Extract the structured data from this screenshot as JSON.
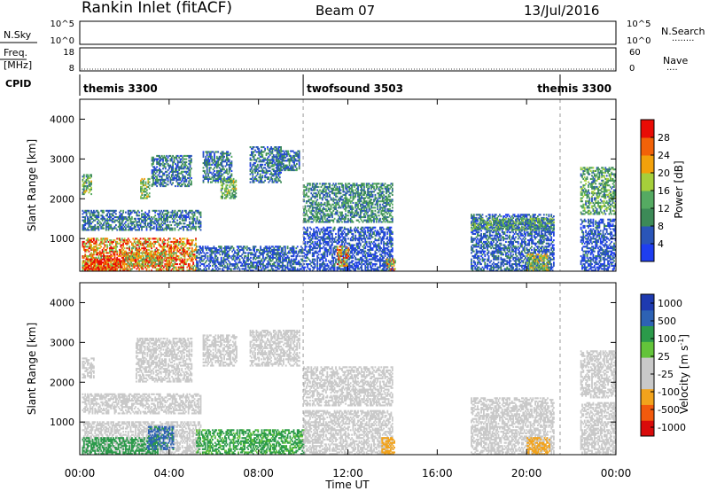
{
  "header": {
    "station": "Rankin Inlet (fitACF)",
    "beam": "Beam 07",
    "date": "13/Jul/2016"
  },
  "strip_labels": {
    "nsky": "N.Sky",
    "nsearch": "N.Search",
    "freq_top": "Freq.",
    "freq_bottom": "[MHz]",
    "nave": "Nave",
    "cpid": "CPID"
  },
  "strip_ticks": {
    "noise_left_top": "10^5",
    "noise_left_bottom": "10^0",
    "noise_right_top": "10^5",
    "noise_right_bottom": "10^0",
    "freq_top": "18",
    "freq_bottom": "8",
    "nave_top": "60",
    "nave_bottom": "0"
  },
  "cpid_segments": [
    {
      "label": "themis 3300",
      "start_h": 0,
      "end_h": 10
    },
    {
      "label": "twofsound 3503",
      "start_h": 10,
      "end_h": 21.5
    },
    {
      "label": "themis 3300",
      "start_h": 21.5,
      "end_h": 24
    }
  ],
  "data_gaps": [
    {
      "start_h": 14.1,
      "end_h": 17.5
    },
    {
      "start_h": 21.2,
      "end_h": 22.4
    }
  ],
  "colors": {
    "power": [
      "#1e3ef0",
      "#2a55b8",
      "#3c8a57",
      "#55aa62",
      "#a6cf3b",
      "#f2a10b",
      "#f26208",
      "#e90c06"
    ],
    "velocity": [
      "#d90b0b",
      "#f25a0d",
      "#f2a31c",
      "#c9c9c9",
      "#c9c9c9",
      "#63c43a",
      "#2b9a4a",
      "#2d62b4",
      "#1e3ab0"
    ]
  },
  "chart_data": [
    {
      "type": "heatmap",
      "panel": "power",
      "title": "",
      "ylabel": "Slant Range [km]",
      "xlim": [
        0,
        24
      ],
      "ylim": [
        180,
        4500
      ],
      "yticks": [
        "1000",
        "2000",
        "3000",
        "4000"
      ],
      "colorbar_label": "Power [dB]",
      "colorbar_ticks": [
        "4",
        "8",
        "12",
        "16",
        "20",
        "24",
        "28"
      ],
      "regions": [
        {
          "x": [
            0.1,
            5.2
          ],
          "y": [
            180,
            1000
          ],
          "value": 24
        },
        {
          "x": [
            0.2,
            2.0
          ],
          "y": [
            180,
            500
          ],
          "value": 30
        },
        {
          "x": [
            2.0,
            4.2
          ],
          "y": [
            300,
            650
          ],
          "value": 20
        },
        {
          "x": [
            0.1,
            5.4
          ],
          "y": [
            1200,
            1700
          ],
          "value": 8
        },
        {
          "x": [
            5.2,
            10.0
          ],
          "y": [
            180,
            800
          ],
          "value": 6
        },
        {
          "x": [
            0.1,
            0.5
          ],
          "y": [
            2100,
            2600
          ],
          "value": 14
        },
        {
          "x": [
            2.7,
            3.1
          ],
          "y": [
            2000,
            2500
          ],
          "value": 16
        },
        {
          "x": [
            3.2,
            5.0
          ],
          "y": [
            2300,
            3100
          ],
          "value": 8
        },
        {
          "x": [
            5.5,
            6.8
          ],
          "y": [
            2400,
            3200
          ],
          "value": 8
        },
        {
          "x": [
            6.3,
            7.0
          ],
          "y": [
            2000,
            2500
          ],
          "value": 14
        },
        {
          "x": [
            7.6,
            9.0
          ],
          "y": [
            2400,
            3300
          ],
          "value": 8
        },
        {
          "x": [
            8.8,
            9.8
          ],
          "y": [
            2700,
            3200
          ],
          "value": 8
        },
        {
          "x": [
            10.0,
            14.0
          ],
          "y": [
            1400,
            2400
          ],
          "value": 10
        },
        {
          "x": [
            10.0,
            14.0
          ],
          "y": [
            180,
            1300
          ],
          "value": 5
        },
        {
          "x": [
            11.5,
            12.0
          ],
          "y": [
            300,
            800
          ],
          "value": 22
        },
        {
          "x": [
            13.7,
            14.1
          ],
          "y": [
            180,
            500
          ],
          "value": 22
        },
        {
          "x": [
            17.5,
            21.2
          ],
          "y": [
            180,
            1600
          ],
          "value": 6
        },
        {
          "x": [
            17.5,
            21.2
          ],
          "y": [
            1200,
            1500
          ],
          "value": 12
        },
        {
          "x": [
            20.0,
            21.0
          ],
          "y": [
            180,
            600
          ],
          "value": 16
        },
        {
          "x": [
            22.4,
            24.0
          ],
          "y": [
            1600,
            2800
          ],
          "value": 12
        },
        {
          "x": [
            22.4,
            24.0
          ],
          "y": [
            180,
            1500
          ],
          "value": 5
        }
      ]
    },
    {
      "type": "heatmap",
      "panel": "velocity",
      "title": "",
      "ylabel": "Slant Range [km]",
      "xlabel": "Time UT",
      "xlim": [
        0,
        24
      ],
      "ylim": [
        180,
        4500
      ],
      "xticks": [
        "00:00",
        "04:00",
        "08:00",
        "12:00",
        "16:00",
        "20:00",
        "00:00"
      ],
      "yticks": [
        "1000",
        "2000",
        "3000",
        "4000"
      ],
      "colorbar_label": "Velocity [m s^-1]",
      "colorbar_ticks": [
        "1000",
        "500",
        "100",
        "25",
        "-25",
        "-100",
        "-500",
        "-1000"
      ],
      "regions": [
        {
          "x": [
            0.1,
            5.4
          ],
          "y": [
            180,
            1000
          ],
          "value": 0
        },
        {
          "x": [
            0.1,
            3.5
          ],
          "y": [
            180,
            600
          ],
          "value": 150
        },
        {
          "x": [
            3.0,
            4.2
          ],
          "y": [
            300,
            900
          ],
          "value": 600
        },
        {
          "x": [
            0.1,
            5.4
          ],
          "y": [
            1200,
            1700
          ],
          "value": 0
        },
        {
          "x": [
            5.2,
            10.0
          ],
          "y": [
            180,
            800
          ],
          "value": 120
        },
        {
          "x": [
            0.1,
            0.6
          ],
          "y": [
            2100,
            2600
          ],
          "value": 0
        },
        {
          "x": [
            2.5,
            5.0
          ],
          "y": [
            2000,
            3100
          ],
          "value": 0
        },
        {
          "x": [
            5.5,
            7.0
          ],
          "y": [
            2400,
            3200
          ],
          "value": 0
        },
        {
          "x": [
            7.6,
            9.8
          ],
          "y": [
            2400,
            3300
          ],
          "value": 0
        },
        {
          "x": [
            10.0,
            14.0
          ],
          "y": [
            1400,
            2400
          ],
          "value": 0
        },
        {
          "x": [
            10.0,
            14.0
          ],
          "y": [
            180,
            1300
          ],
          "value": -50
        },
        {
          "x": [
            13.5,
            14.1
          ],
          "y": [
            180,
            600
          ],
          "value": -300
        },
        {
          "x": [
            17.5,
            21.2
          ],
          "y": [
            180,
            1600
          ],
          "value": -40
        },
        {
          "x": [
            20.0,
            21.0
          ],
          "y": [
            180,
            600
          ],
          "value": -300
        },
        {
          "x": [
            22.4,
            24.0
          ],
          "y": [
            1600,
            2800
          ],
          "value": 0
        },
        {
          "x": [
            22.4,
            24.0
          ],
          "y": [
            180,
            1500
          ],
          "value": -60
        }
      ]
    }
  ]
}
